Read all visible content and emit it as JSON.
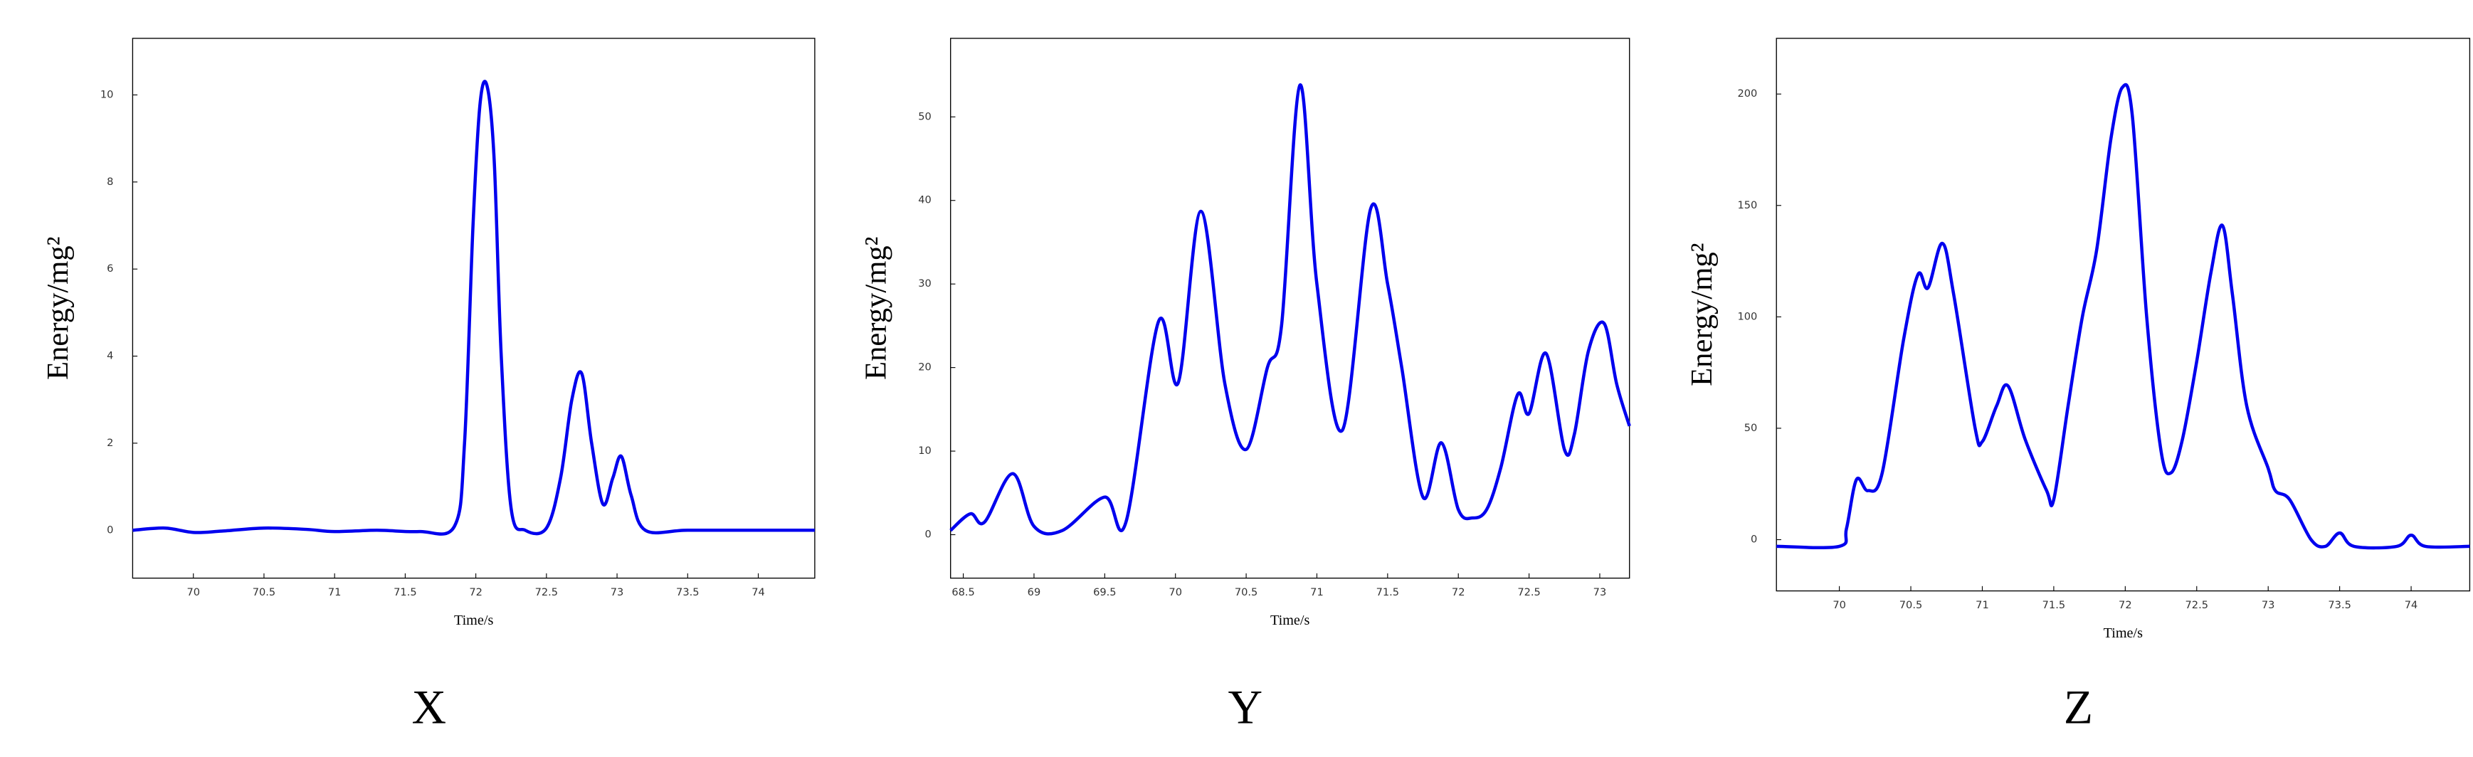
{
  "chart_data": [
    {
      "type": "line",
      "title": "X",
      "x_label": "Time/s",
      "y_label": "Energy/mg²",
      "color": "#0000ee",
      "x": [
        69.57,
        69.8,
        70.0,
        70.2,
        70.5,
        70.8,
        71.0,
        71.3,
        71.6,
        71.85,
        71.92,
        71.98,
        72.03,
        72.08,
        72.13,
        72.18,
        72.25,
        72.35,
        72.5,
        72.6,
        72.68,
        72.75,
        72.82,
        72.9,
        72.97,
        73.03,
        73.1,
        73.2,
        73.5,
        74.0,
        74.4
      ],
      "values": [
        0,
        0.05,
        -0.05,
        -0.02,
        0.05,
        0.02,
        -0.03,
        0,
        -0.03,
        0.1,
        2,
        7,
        9.8,
        10.2,
        8.5,
        4,
        0.5,
        0,
        0.05,
        1.2,
        3,
        3.6,
        2,
        0.6,
        1.2,
        1.7,
        0.8,
        0,
        0,
        0,
        0
      ],
      "xlim": [
        69.57,
        74.4
      ],
      "ylim": [
        -1.1,
        11.3
      ],
      "xticks": [
        70,
        70.5,
        71,
        71.5,
        72,
        72.5,
        73,
        73.5,
        74
      ],
      "yticks": [
        0,
        2,
        4,
        6,
        8,
        10
      ]
    },
    {
      "type": "line",
      "title": "Y",
      "x_label": "Time/s",
      "y_label": "Energy/mg²",
      "color": "#0000ee",
      "x": [
        68.41,
        68.55,
        68.65,
        68.85,
        69.0,
        69.2,
        69.5,
        69.65,
        69.88,
        70.02,
        70.18,
        70.35,
        70.5,
        70.65,
        70.75,
        70.88,
        71.0,
        71.18,
        71.38,
        71.5,
        71.6,
        71.75,
        71.88,
        72.0,
        72.1,
        72.2,
        72.3,
        72.42,
        72.5,
        72.62,
        72.75,
        72.82,
        72.92,
        73.03,
        73.12,
        73.21
      ],
      "values": [
        0.5,
        2.5,
        1.5,
        7.3,
        1,
        0.5,
        4.5,
        1.5,
        25.5,
        18.2,
        38.7,
        18,
        10.2,
        20,
        25,
        53.8,
        30,
        12.5,
        39,
        30,
        20,
        4.5,
        11,
        3,
        2,
        3,
        8,
        16.8,
        14.5,
        21.7,
        10.2,
        12,
        22,
        25.3,
        18,
        13
      ],
      "xlim": [
        68.41,
        73.21
      ],
      "ylim": [
        -5.2,
        59.4
      ],
      "xticks": [
        68.5,
        69,
        69.5,
        70,
        70.5,
        71,
        71.5,
        72,
        72.5,
        73
      ],
      "yticks": [
        0,
        10,
        20,
        30,
        40,
        50
      ]
    },
    {
      "type": "line",
      "title": "Z",
      "x_label": "Time/s",
      "y_label": "Energy/mg²",
      "color": "#0000ee",
      "x": [
        69.56,
        70.0,
        70.05,
        70.12,
        70.2,
        70.3,
        70.45,
        70.55,
        70.62,
        70.72,
        70.8,
        70.95,
        71.0,
        71.1,
        71.18,
        71.3,
        71.45,
        71.5,
        71.6,
        71.7,
        71.8,
        71.9,
        71.98,
        72.05,
        72.15,
        72.25,
        72.32,
        72.4,
        72.5,
        72.6,
        72.68,
        72.75,
        72.85,
        73.0,
        73.05,
        73.15,
        73.3,
        73.4,
        73.5,
        73.6,
        73.9,
        74.0,
        74.1,
        74.41
      ],
      "values": [
        -3,
        -3,
        5,
        27,
        22,
        30,
        90,
        119,
        113,
        133,
        110,
        50,
        44,
        60,
        69,
        45,
        22,
        18,
        60,
        100,
        130,
        180,
        203,
        190,
        100,
        40,
        30,
        45,
        80,
        120,
        141,
        110,
        60,
        32,
        22,
        18,
        0,
        -3,
        3,
        -3,
        -3,
        2,
        -3,
        -3
      ],
      "xlim": [
        69.56,
        74.41
      ],
      "ylim": [
        -23,
        225
      ],
      "xticks": [
        70,
        70.5,
        71,
        71.5,
        72,
        72.5,
        73,
        73.5,
        74
      ],
      "yticks": [
        0,
        50,
        100,
        150,
        200
      ]
    }
  ]
}
